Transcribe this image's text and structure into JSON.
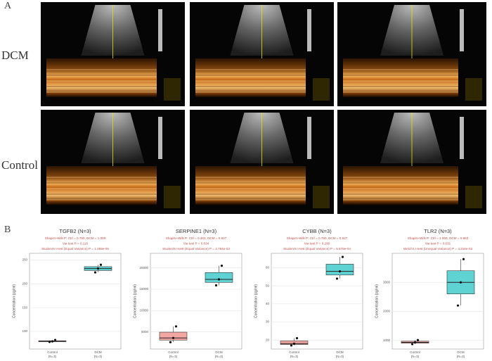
{
  "panels": {
    "a_label": "A",
    "b_label": "B",
    "row_labels": [
      "DCM",
      "Control"
    ]
  },
  "chart_data": [
    {
      "type": "box",
      "title": "TGFB2 (N=3)",
      "subtitle_lines": [
        "Shapiro-Wilk P: Ctrl = 0.780, DCM = 1.000",
        "Var test P = 0.116",
        "Student's t-test (Equal Variance) P = 1.359e-05"
      ],
      "y_label": "Concentration (pg/ml)",
      "categories": [
        "Control",
        "DCM"
      ],
      "category_notes": [
        "(N=3)",
        "(N=3)"
      ],
      "groups": [
        {
          "color": "#f4a6a3",
          "points": [
            78,
            79,
            82
          ],
          "box": [
            78,
            78.5,
            79,
            80.5,
            82
          ]
        },
        {
          "color": "#5fd3d3",
          "points": [
            224,
            232,
            240
          ],
          "box": [
            224,
            228,
            232,
            236,
            240
          ]
        }
      ],
      "ylim": [
        63,
        264
      ],
      "yticks": [
        100,
        150,
        200,
        250
      ],
      "grid": true
    },
    {
      "type": "box",
      "title": "SERPINE1 (N=3)",
      "subtitle_lines": [
        "Shapiro-Wilk P: Ctrl = 0.463, DCM = 0.637",
        "Var test P = 0.634",
        "Student's t-test (Equal Variance) P = 2.784e-03"
      ],
      "y_label": "Concentration (pg/ml)",
      "categories": [
        "Control",
        "DCM"
      ],
      "category_notes": [
        "(N=3)",
        "(N=3)"
      ],
      "groups": [
        {
          "color": "#f4a6a3",
          "points": [
            2600,
            3600,
            6300
          ],
          "box": [
            2600,
            3100,
            3600,
            4950,
            6300
          ]
        },
        {
          "color": "#5fd3d3",
          "points": [
            15900,
            17300,
            20500
          ],
          "box": [
            15900,
            16600,
            17300,
            18900,
            20500
          ]
        }
      ],
      "ylim": [
        1000,
        23400
      ],
      "yticks": [
        5000,
        10000,
        15000,
        20000
      ],
      "grid": true
    },
    {
      "type": "box",
      "title": "CYBB (N=3)",
      "subtitle_lines": [
        "Shapiro-Wilk P: Ctrl = 0.780, DCM = 0.637",
        "Var test P = 0.290",
        "Student's t-test (Equal Variance) P = 5.879e-04"
      ],
      "y_label": "Concentration (pg/ml)",
      "categories": [
        "Control",
        "DCM"
      ],
      "category_notes": [
        "(N=3)",
        "(N=3)"
      ],
      "groups": [
        {
          "color": "#f4a6a3",
          "points": [
            17,
            18,
            21
          ],
          "box": [
            17,
            17.5,
            18,
            19.5,
            21
          ]
        },
        {
          "color": "#5fd3d3",
          "points": [
            54,
            58,
            66
          ],
          "box": [
            54,
            56,
            58,
            62,
            66
          ]
        }
      ],
      "ylim": [
        15,
        68
      ],
      "yticks": [
        20,
        30,
        40,
        50,
        60
      ],
      "grid": true
    },
    {
      "type": "box",
      "title": "TLR2 (N=3)",
      "subtitle_lines": [
        "Shapiro-Wilk P: Ctrl = 1.000, DCM = 0.862",
        "Var test P = 0.031",
        "Welch's t-test (Unequal Variance) P = 4.316e-03"
      ],
      "y_label": "Concentration (pg/ml)",
      "categories": [
        "Control",
        "DCM"
      ],
      "category_notes": [
        "(N=3)",
        "(N=3)"
      ],
      "groups": [
        {
          "color": "#f4a6a3",
          "points": [
            870,
            930,
            1010
          ],
          "box": [
            870,
            900,
            930,
            970,
            1010
          ]
        },
        {
          "color": "#5fd3d3",
          "points": [
            2200,
            3000,
            3800
          ],
          "box": [
            2200,
            2600,
            3000,
            3400,
            3800
          ]
        }
      ],
      "ylim": [
        700,
        4000
      ],
      "yticks": [
        1000,
        2000,
        3000
      ],
      "grid": true
    }
  ]
}
